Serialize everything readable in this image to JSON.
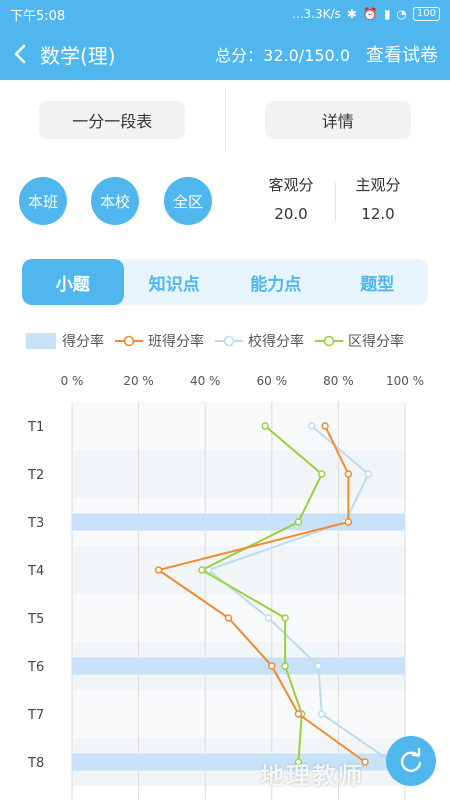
{
  "status": {
    "time": "下午5:08",
    "network": "...3.3K/s",
    "battery": "100"
  },
  "header": {
    "title": "数学(理)",
    "total": "总分：32.0/150.0",
    "view_paper": "查看试卷"
  },
  "buttons": {
    "segment_table": "一分一段表",
    "details": "详情"
  },
  "scopes": [
    "本班",
    "本校",
    "全区"
  ],
  "scores": {
    "objective": {
      "label": "客观分",
      "value": "20.0"
    },
    "subjective": {
      "label": "主观分",
      "value": "12.0"
    }
  },
  "tabs": [
    "小题",
    "知识点",
    "能力点",
    "题型"
  ],
  "legend": [
    "得分率",
    "班得分率",
    "校得分率",
    "区得分率"
  ],
  "colors": {
    "accent": "#4fb6ee",
    "class": "#f08a2c",
    "school": "#bcdcf2",
    "district": "#9ad13a",
    "bar": "#c7e2f8"
  },
  "watermark": "地理教师",
  "chart_data": {
    "type": "line",
    "orientation": "horizontal",
    "x_ticks": [
      "0 %",
      "20 %",
      "40 %",
      "60 %",
      "80 %",
      "100 %"
    ],
    "xlim": [
      0,
      100
    ],
    "categories": [
      "T1",
      "T2",
      "T3",
      "T4",
      "T5",
      "T6",
      "T7",
      "T8"
    ],
    "bar_values": [
      0,
      0,
      100,
      0,
      0,
      100,
      0,
      100
    ],
    "series": [
      {
        "name": "班得分率",
        "values": [
          76,
          83,
          83,
          26,
          47,
          60,
          68,
          88
        ]
      },
      {
        "name": "校得分率",
        "values": [
          72,
          89,
          82,
          41,
          59,
          74,
          75,
          96
        ]
      },
      {
        "name": "区得分率",
        "values": [
          58,
          75,
          68,
          39,
          64,
          64,
          69,
          68
        ]
      }
    ]
  }
}
